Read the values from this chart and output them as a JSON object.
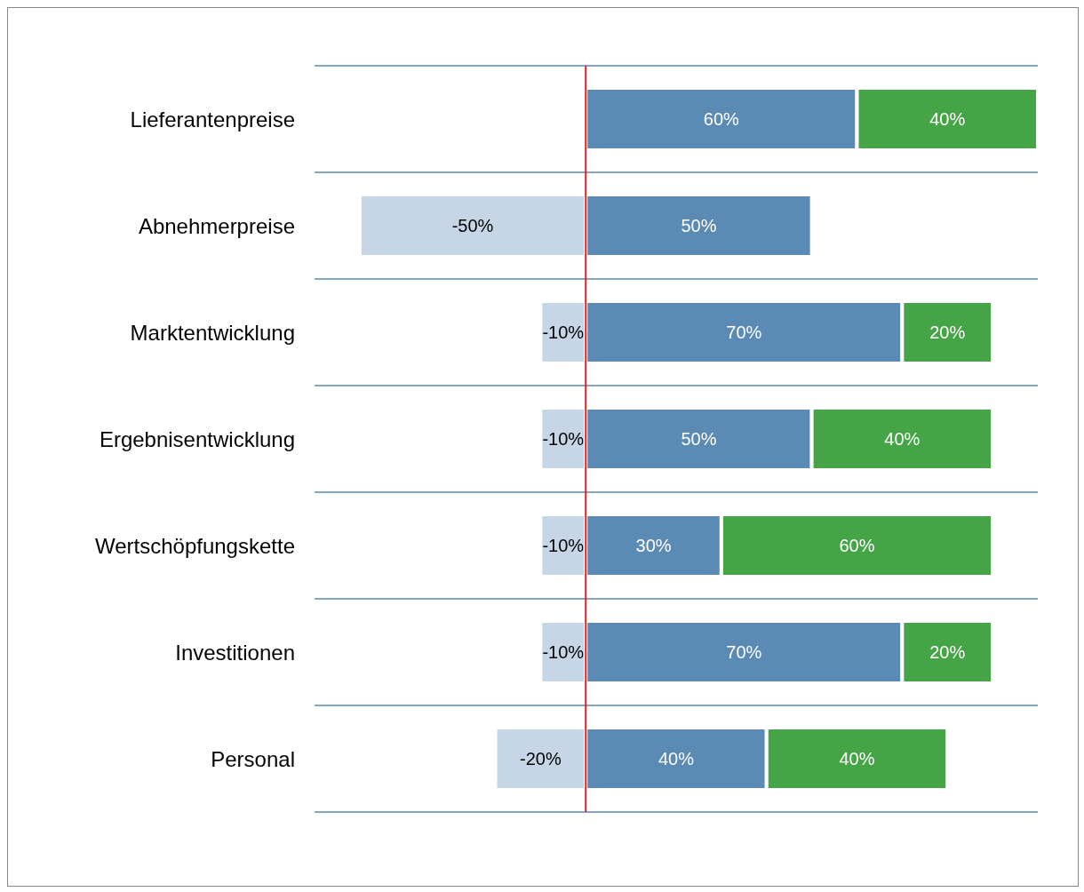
{
  "chart_data": {
    "type": "bar",
    "orientation": "horizontal",
    "stacked": true,
    "categories": [
      "Lieferantenpreise",
      "Abnehmerpreise",
      "Marktentwicklung",
      "Ergebnisentwicklung",
      "Wertschöpfungskette",
      "Investitionen",
      "Personal"
    ],
    "series": [
      {
        "color": "#c6d6e6",
        "values": [
          null,
          -50,
          -10,
          -10,
          -10,
          -10,
          -20
        ],
        "value_labels": [
          null,
          "-50%",
          "-10%",
          "-10%",
          "-10%",
          "-10%",
          "-20%"
        ]
      },
      {
        "color": "#5b8ab5",
        "values": [
          60,
          50,
          70,
          50,
          30,
          70,
          40
        ],
        "value_labels": [
          "60%",
          "50%",
          "70%",
          "50%",
          "30%",
          "70%",
          "40%"
        ]
      },
      {
        "color": "#44a446",
        "values": [
          40,
          null,
          20,
          40,
          60,
          20,
          40
        ],
        "value_labels": [
          "40%",
          null,
          "20%",
          "40%",
          "60%",
          "20%",
          "40%"
        ]
      }
    ],
    "xlim": [
      -60,
      100
    ],
    "grid": true,
    "tick_labels": "y",
    "legend": false,
    "ref_lines": [
      {
        "axis": "x",
        "value": 0,
        "color": "#e02020"
      }
    ]
  }
}
